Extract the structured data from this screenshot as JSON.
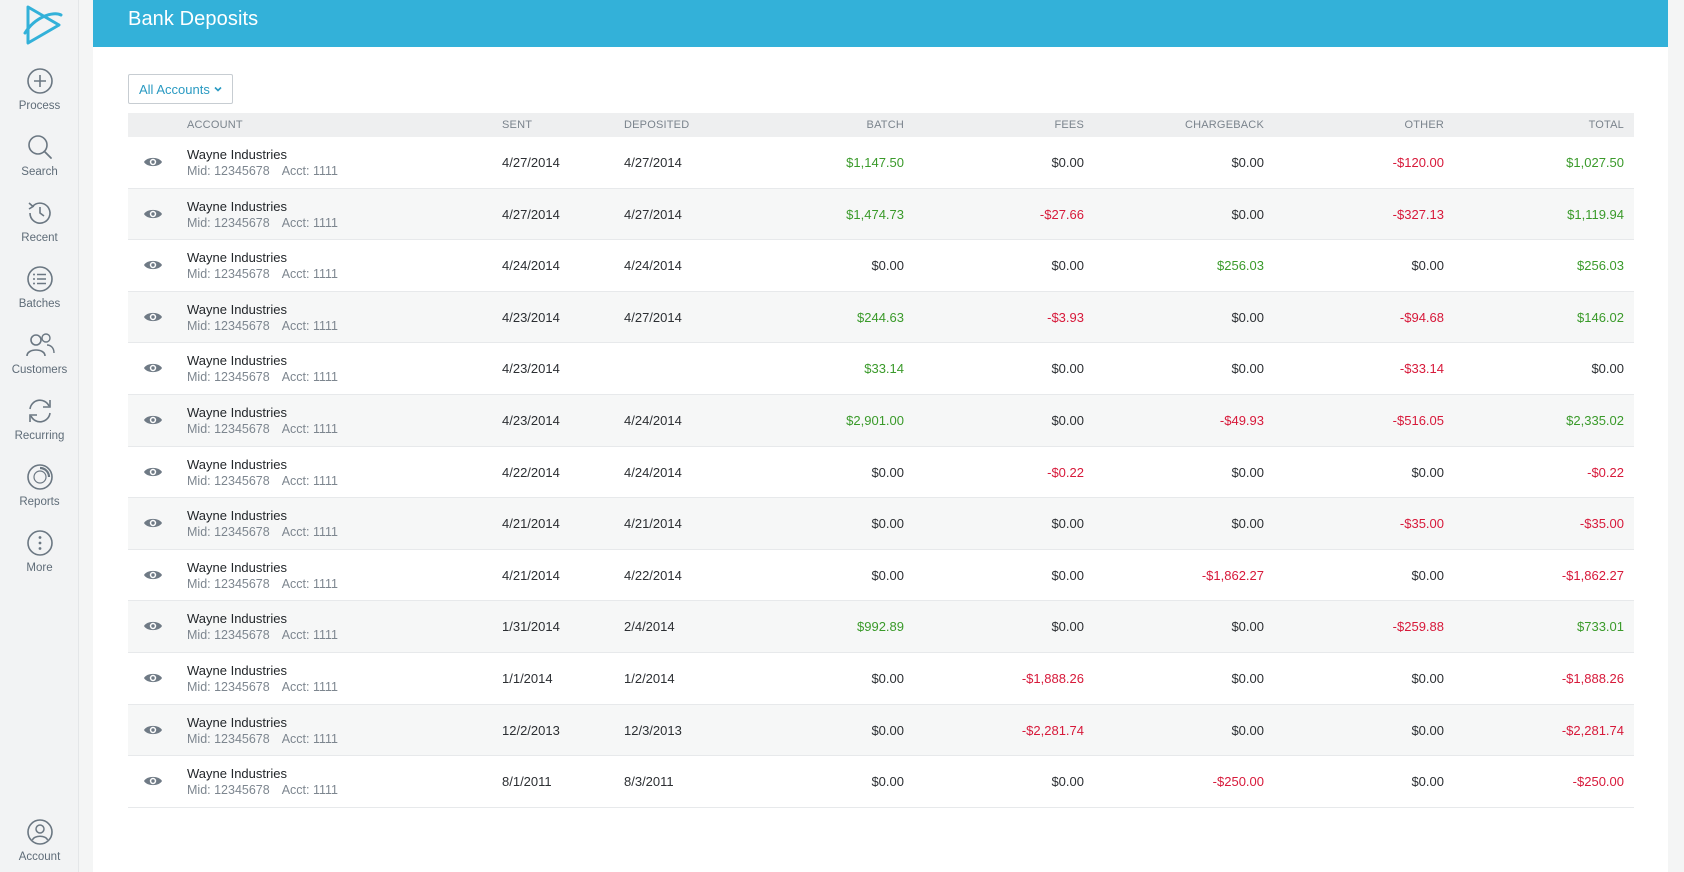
{
  "sidebar": {
    "items": [
      {
        "label": "Process",
        "icon": "plus-circle-icon"
      },
      {
        "label": "Search",
        "icon": "search-icon"
      },
      {
        "label": "Recent",
        "icon": "history-icon"
      },
      {
        "label": "Batches",
        "icon": "list-icon"
      },
      {
        "label": "Customers",
        "icon": "users-icon"
      },
      {
        "label": "Recurring",
        "icon": "refresh-icon"
      },
      {
        "label": "Reports",
        "icon": "reports-icon"
      },
      {
        "label": "More",
        "icon": "more-icon"
      }
    ],
    "account": {
      "label": "Account",
      "icon": "account-icon"
    }
  },
  "header": {
    "title": "Bank Deposits"
  },
  "filter": {
    "label": "All Accounts"
  },
  "table": {
    "headers": {
      "account": "ACCOUNT",
      "sent": "SENT",
      "deposited": "DEPOSITED",
      "batch": "BATCH",
      "fees": "FEES",
      "chargeback": "CHARGEBACK",
      "other": "OTHER",
      "total": "TOTAL"
    },
    "rows": [
      {
        "name": "Wayne Industries",
        "mid": "Mid: 12345678",
        "acct": "Acct: 1111",
        "sent": "4/27/2014",
        "deposited": "4/27/2014",
        "batch": "$1,147.50",
        "fees": "$0.00",
        "chargeback": "$0.00",
        "other": "-$120.00",
        "total": "$1,027.50"
      },
      {
        "name": "Wayne Industries",
        "mid": "Mid: 12345678",
        "acct": "Acct: 1111",
        "sent": "4/27/2014",
        "deposited": "4/27/2014",
        "batch": "$1,474.73",
        "fees": "-$27.66",
        "chargeback": "$0.00",
        "other": "-$327.13",
        "total": "$1,119.94"
      },
      {
        "name": "Wayne Industries",
        "mid": "Mid: 12345678",
        "acct": "Acct: 1111",
        "sent": "4/24/2014",
        "deposited": "4/24/2014",
        "batch": "$0.00",
        "fees": "$0.00",
        "chargeback": "$256.03",
        "other": "$0.00",
        "total": "$256.03"
      },
      {
        "name": "Wayne Industries",
        "mid": "Mid: 12345678",
        "acct": "Acct: 1111",
        "sent": "4/23/2014",
        "deposited": "4/27/2014",
        "batch": "$244.63",
        "fees": "-$3.93",
        "chargeback": "$0.00",
        "other": "-$94.68",
        "total": "$146.02"
      },
      {
        "name": "Wayne Industries",
        "mid": "Mid: 12345678",
        "acct": "Acct: 1111",
        "sent": "4/23/2014",
        "deposited": "",
        "batch": "$33.14",
        "fees": "$0.00",
        "chargeback": "$0.00",
        "other": "-$33.14",
        "total": "$0.00"
      },
      {
        "name": "Wayne Industries",
        "mid": "Mid: 12345678",
        "acct": "Acct: 1111",
        "sent": "4/23/2014",
        "deposited": "4/24/2014",
        "batch": "$2,901.00",
        "fees": "$0.00",
        "chargeback": "-$49.93",
        "other": "-$516.05",
        "total": "$2,335.02"
      },
      {
        "name": "Wayne Industries",
        "mid": "Mid: 12345678",
        "acct": "Acct: 1111",
        "sent": "4/22/2014",
        "deposited": "4/24/2014",
        "batch": "$0.00",
        "fees": "-$0.22",
        "chargeback": "$0.00",
        "other": "$0.00",
        "total": "-$0.22"
      },
      {
        "name": "Wayne Industries",
        "mid": "Mid: 12345678",
        "acct": "Acct: 1111",
        "sent": "4/21/2014",
        "deposited": "4/21/2014",
        "batch": "$0.00",
        "fees": "$0.00",
        "chargeback": "$0.00",
        "other": "-$35.00",
        "total": "-$35.00"
      },
      {
        "name": "Wayne Industries",
        "mid": "Mid: 12345678",
        "acct": "Acct: 1111",
        "sent": "4/21/2014",
        "deposited": "4/22/2014",
        "batch": "$0.00",
        "fees": "$0.00",
        "chargeback": "-$1,862.27",
        "other": "$0.00",
        "total": "-$1,862.27"
      },
      {
        "name": "Wayne Industries",
        "mid": "Mid: 12345678",
        "acct": "Acct: 1111",
        "sent": "1/31/2014",
        "deposited": "2/4/2014",
        "batch": "$992.89",
        "fees": "$0.00",
        "chargeback": "$0.00",
        "other": "-$259.88",
        "total": "$733.01"
      },
      {
        "name": "Wayne Industries",
        "mid": "Mid: 12345678",
        "acct": "Acct: 1111",
        "sent": "1/1/2014",
        "deposited": "1/2/2014",
        "batch": "$0.00",
        "fees": "-$1,888.26",
        "chargeback": "$0.00",
        "other": "$0.00",
        "total": "-$1,888.26"
      },
      {
        "name": "Wayne Industries",
        "mid": "Mid: 12345678",
        "acct": "Acct: 1111",
        "sent": "12/2/2013",
        "deposited": "12/3/2013",
        "batch": "$0.00",
        "fees": "-$2,281.74",
        "chargeback": "$0.00",
        "other": "$0.00",
        "total": "-$2,281.74"
      },
      {
        "name": "Wayne Industries",
        "mid": "Mid: 12345678",
        "acct": "Acct: 1111",
        "sent": "8/1/2011",
        "deposited": "8/3/2011",
        "batch": "$0.00",
        "fees": "$0.00",
        "chargeback": "-$250.00",
        "other": "$0.00",
        "total": "-$250.00"
      }
    ]
  },
  "colors": {
    "header": "#33b1d9",
    "positive": "#3a9a2a",
    "negative": "#d7193a",
    "link": "#2a9ac2"
  }
}
